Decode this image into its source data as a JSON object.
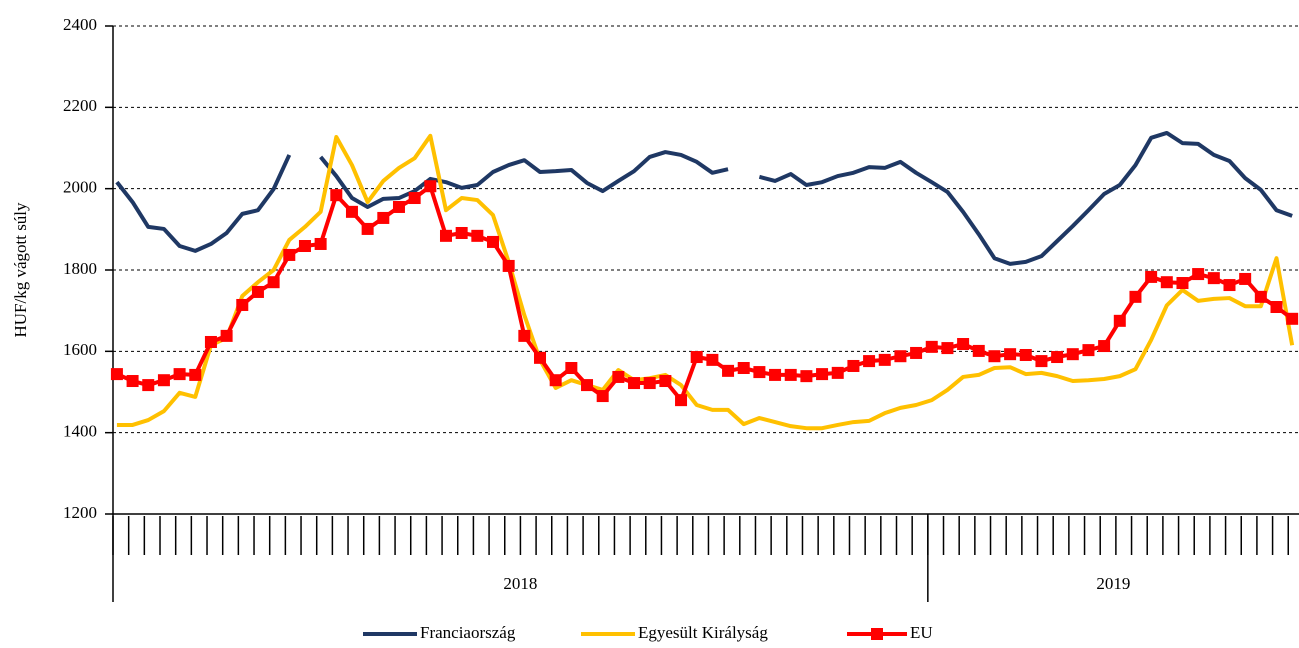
{
  "chart_data": {
    "type": "line",
    "y_label": "HUF/kg vágott súly",
    "ylim": [
      1200,
      2400
    ],
    "yticks": [
      1200,
      1400,
      1600,
      1800,
      2000,
      2200,
      2400
    ],
    "grid": true,
    "legend": "bottom",
    "categories": [
      null,
      null,
      null,
      null,
      null,
      null,
      null,
      null,
      null,
      null,
      null,
      null,
      null,
      null,
      null,
      null,
      null,
      null,
      null,
      null,
      null,
      null,
      null,
      null,
      null,
      null,
      null,
      null,
      null,
      null,
      null,
      null,
      null,
      null,
      null,
      null,
      null,
      null,
      null,
      null,
      null,
      null,
      null,
      null,
      null,
      null,
      null,
      null,
      null,
      null,
      null,
      null,
      null,
      null,
      null,
      null,
      null,
      null,
      null,
      null,
      null,
      null,
      null,
      null,
      null,
      null,
      null,
      null,
      null,
      null,
      null,
      null,
      null,
      null,
      null,
      null
    ],
    "groups": [
      {
        "label": "2018",
        "size": 52
      },
      {
        "label": "2019",
        "size": 24
      }
    ],
    "series": [
      {
        "name": "Franciaország",
        "color": "#1f3864",
        "values": [
          2016,
          1967,
          1906,
          1901,
          1859,
          1847,
          1864,
          1891,
          1938,
          1947,
          1999,
          2083,
          null,
          2078,
          2031,
          1977,
          1955,
          1975,
          1977,
          1994,
          2024,
          2016,
          2002,
          2009,
          2041,
          2058,
          2070,
          2041,
          2043,
          2046,
          2014,
          1994,
          2019,
          2043,
          2078,
          2090,
          2083,
          2066,
          2039,
          2048,
          null,
          2029,
          2019,
          2036,
          2009,
          2016,
          2031,
          2039,
          2053,
          2051,
          2066,
          2039,
          2016,
          1992,
          1943,
          1888,
          1829,
          1815,
          1820,
          1834,
          1871,
          1908,
          1947,
          1987,
          2009,
          2058,
          2125,
          2137,
          2112,
          2110,
          2083,
          2068,
          2026,
          1997,
          1947,
          1933
        ]
      },
      {
        "name": "Egyesült Királyság",
        "color": "#ffc000",
        "values": [
          1419,
          1419,
          1431,
          1453,
          1498,
          1488,
          1615,
          1633,
          1736,
          1770,
          1800,
          1874,
          1906,
          1943,
          2127,
          2058,
          1967,
          2019,
          2051,
          2075,
          2130,
          1947,
          1977,
          1972,
          1935,
          1820,
          1689,
          1579,
          1510,
          1529,
          1517,
          1505,
          1554,
          1529,
          1534,
          1542,
          1517,
          1468,
          1456,
          1456,
          1421,
          1436,
          1426,
          1416,
          1411,
          1411,
          1419,
          1426,
          1429,
          1448,
          1461,
          1468,
          1480,
          1505,
          1537,
          1542,
          1559,
          1561,
          1544,
          1547,
          1539,
          1527,
          1529,
          1532,
          1539,
          1556,
          1628,
          1713,
          1751,
          1724,
          1729,
          1731,
          1711,
          1711,
          1829,
          1615
        ]
      },
      {
        "name": "EU",
        "color": "#ff0000",
        "marker": "square",
        "values": [
          1544,
          1527,
          1517,
          1529,
          1544,
          1542,
          1623,
          1638,
          1714,
          1746,
          1770,
          1837,
          1859,
          1864,
          1984,
          1943,
          1901,
          1928,
          1955,
          1977,
          2006,
          1884,
          1891,
          1884,
          1869,
          1810,
          1638,
          1584,
          1529,
          1559,
          1517,
          1490,
          1537,
          1522,
          1522,
          1527,
          1480,
          1586,
          1579,
          1552,
          1559,
          1549,
          1542,
          1542,
          1539,
          1544,
          1547,
          1564,
          1576,
          1579,
          1588,
          1596,
          1611,
          1608,
          1618,
          1601,
          1588,
          1593,
          1591,
          1576,
          1586,
          1593,
          1603,
          1613,
          1675,
          1734,
          1783,
          1770,
          1768,
          1790,
          1780,
          1763,
          1778,
          1734,
          1709,
          1680
        ]
      }
    ]
  }
}
